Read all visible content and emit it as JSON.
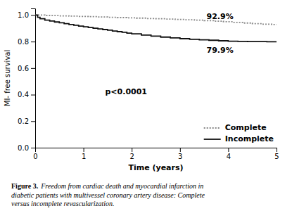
{
  "chart_data": {
    "type": "step",
    "xlabel": "Time (years)",
    "ylabel": "MI- free survival",
    "xlim": [
      0,
      5
    ],
    "ylim": [
      0.0,
      1.05
    ],
    "xticks": [
      0,
      1,
      2,
      3,
      4,
      5
    ],
    "yticks": [
      {
        "value": 0.0,
        "label": "0.0"
      },
      0.2,
      0.4,
      0.6,
      0.8,
      {
        "value": 1.0,
        "label": "1.0"
      }
    ],
    "series": [
      {
        "name": "Complete",
        "color": "#888888",
        "line_style": "dotted",
        "x": [
          0,
          0.1,
          0.2,
          0.3,
          0.5,
          0.7,
          0.9,
          1.1,
          1.3,
          1.5,
          1.7,
          1.9,
          2.1,
          2.3,
          2.5,
          2.7,
          2.9,
          3.1,
          3.3,
          3.5,
          3.7,
          3.9,
          4.1,
          4.3,
          4.5,
          4.7,
          4.9,
          5.0
        ],
        "values": [
          1.0,
          1.0,
          0.997,
          0.996,
          0.994,
          0.992,
          0.99,
          0.988,
          0.986,
          0.983,
          0.981,
          0.979,
          0.977,
          0.974,
          0.972,
          0.97,
          0.967,
          0.965,
          0.962,
          0.958,
          0.954,
          0.95,
          0.945,
          0.94,
          0.935,
          0.931,
          0.929,
          0.929
        ]
      },
      {
        "name": "Incomplete",
        "color": "#111111",
        "line_style": "solid",
        "x": [
          0,
          0.05,
          0.1,
          0.2,
          0.3,
          0.4,
          0.5,
          0.6,
          0.7,
          0.8,
          0.9,
          1.0,
          1.1,
          1.2,
          1.3,
          1.4,
          1.5,
          1.6,
          1.7,
          1.8,
          1.9,
          2.0,
          2.2,
          2.4,
          2.6,
          2.8,
          3.0,
          3.2,
          3.4,
          3.6,
          3.8,
          4.0,
          4.2,
          4.4,
          4.6,
          4.8,
          5.0
        ],
        "values": [
          1.0,
          0.983,
          0.972,
          0.962,
          0.955,
          0.948,
          0.942,
          0.935,
          0.929,
          0.923,
          0.917,
          0.911,
          0.906,
          0.901,
          0.896,
          0.891,
          0.886,
          0.88,
          0.875,
          0.87,
          0.864,
          0.858,
          0.849,
          0.841,
          0.834,
          0.828,
          0.822,
          0.817,
          0.813,
          0.81,
          0.806,
          0.803,
          0.801,
          0.8,
          0.8,
          0.799,
          0.799
        ]
      }
    ],
    "annotations": [
      "92.9%",
      "79.9%",
      "p<0.0001"
    ],
    "legend": "lower right",
    "caption_label": "Figure 3.",
    "caption": [
      "Freedom from cardiac death and myocardial infarction in",
      "diabetic patients with multivessel coronary artery disease: Complete",
      "versus incomplete revascularization."
    ]
  }
}
